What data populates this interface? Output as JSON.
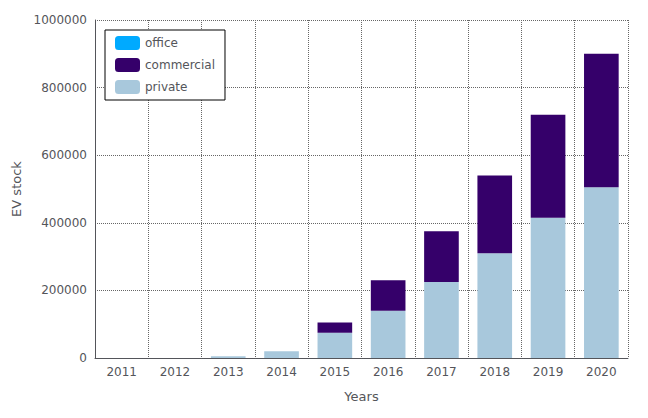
{
  "chart_data": {
    "type": "bar",
    "stacked": true,
    "categories": [
      "2011",
      "2012",
      "2013",
      "2014",
      "2015",
      "2016",
      "2017",
      "2018",
      "2019",
      "2020"
    ],
    "series": [
      {
        "name": "private",
        "color": "#a8c8dc",
        "values": [
          0,
          0,
          5000,
          20000,
          75000,
          140000,
          225000,
          310000,
          415000,
          505000
        ]
      },
      {
        "name": "commercial",
        "color": "#35006a",
        "values": [
          0,
          0,
          0,
          0,
          30000,
          90000,
          150000,
          230000,
          305000,
          395000
        ]
      },
      {
        "name": "office",
        "color": "#00aaff",
        "values": [
          0,
          0,
          0,
          0,
          0,
          0,
          0,
          0,
          0,
          0
        ]
      }
    ],
    "xlabel": "Years",
    "ylabel": "EV stock",
    "ylim": [
      0,
      1000000
    ],
    "yticks": [
      0,
      200000,
      400000,
      600000,
      800000,
      1000000
    ],
    "grid": true,
    "legend": "upper left"
  }
}
